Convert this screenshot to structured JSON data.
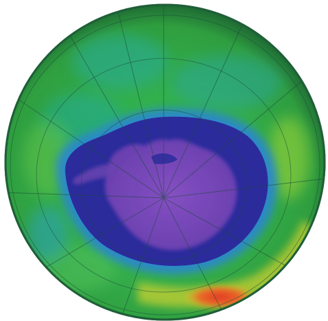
{
  "map": {
    "projection": "polar-orthographic-south",
    "subject": "ozone-column-concentration",
    "features": [
      "globe-disc",
      "ozone-hole",
      "antarctica-landmass",
      "meridian-lines",
      "latitude-circles",
      "high-concentration-band"
    ],
    "colors": {
      "globe_edge": "#1f5f38",
      "ozone_high": "#e0402a",
      "ozone_elevated": "#e8d020",
      "ozone_mid": "#3fbf3f",
      "ozone_midlow": "#28b07a",
      "ozone_low_edge": "#2a9ad8",
      "ozone_hole": "#2a2a9a",
      "antarctica": "#7a48b8",
      "grid_lines": "#1a4a3a"
    },
    "meridian_count": 12,
    "latitude_circle_count": 3
  }
}
